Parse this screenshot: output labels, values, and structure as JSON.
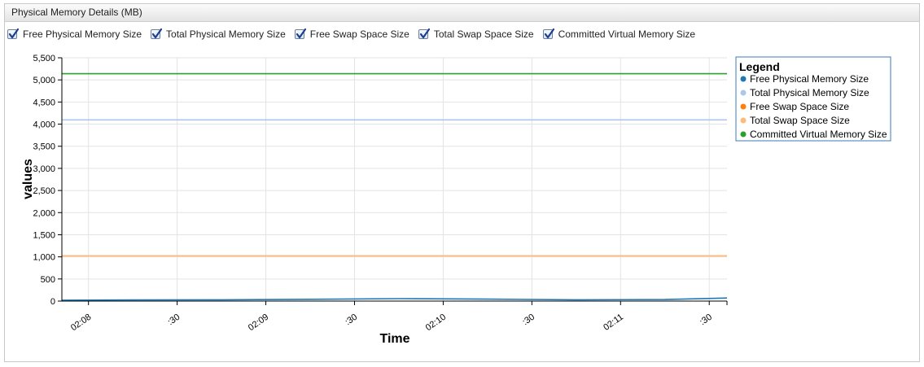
{
  "panel": {
    "title": "Physical Memory Details (MB)"
  },
  "toggles": [
    {
      "label": "Free Physical Memory Size",
      "checked": true
    },
    {
      "label": "Total Physical Memory Size",
      "checked": true
    },
    {
      "label": "Free Swap Space Size",
      "checked": true
    },
    {
      "label": "Total Swap Space Size",
      "checked": true
    },
    {
      "label": "Committed Virtual Memory Size",
      "checked": true
    }
  ],
  "chart_data": {
    "type": "line",
    "title": "",
    "xlabel": "Time",
    "ylabel": "values",
    "ylim": [
      0,
      5500
    ],
    "xlim": [
      "02:07:51",
      "02:11:36"
    ],
    "y_ticks": [
      0,
      500,
      1000,
      1500,
      2000,
      2500,
      3000,
      3500,
      4000,
      4500,
      5000,
      5500
    ],
    "y_tick_labels": [
      "0",
      "500",
      "1,000",
      "1,500",
      "2,000",
      "2,500",
      "3,000",
      "3,500",
      "4,000",
      "4,500",
      "5,000",
      "5,500"
    ],
    "x_tick_labels": [
      "02:08",
      ":30",
      "02:09",
      ":30",
      "02:10",
      ":30",
      "02:11",
      ":30"
    ],
    "x_ticks": [
      "02:08:00",
      "02:08:30",
      "02:09:00",
      "02:09:30",
      "02:10:00",
      "02:10:30",
      "02:11:00",
      "02:11:30"
    ],
    "grid": true,
    "legend": {
      "title": "Legend",
      "placement": "right"
    },
    "series": [
      {
        "name": "Free Physical Memory Size",
        "color": "#1f77b4",
        "x": [
          "02:07:51",
          "02:08:15",
          "02:08:45",
          "02:09:15",
          "02:09:45",
          "02:10:15",
          "02:10:45",
          "02:11:15",
          "02:11:36"
        ],
        "values": [
          20,
          25,
          30,
          40,
          55,
          45,
          30,
          35,
          70
        ]
      },
      {
        "name": "Total Physical Memory Size",
        "color": "#aec7e8",
        "x": [
          "02:07:51",
          "02:11:36"
        ],
        "values": [
          4096,
          4096
        ]
      },
      {
        "name": "Free Swap Space Size",
        "color": "#ff7f0e",
        "x": [
          "02:07:51",
          "02:11:36"
        ],
        "values": [
          1024,
          1024
        ]
      },
      {
        "name": "Total Swap Space Size",
        "color": "#ffbb78",
        "x": [
          "02:07:51",
          "02:11:36"
        ],
        "values": [
          1024,
          1024
        ]
      },
      {
        "name": "Committed Virtual Memory Size",
        "color": "#2ca02c",
        "x": [
          "02:07:51",
          "02:11:36"
        ],
        "values": [
          5140,
          5140
        ]
      }
    ]
  }
}
